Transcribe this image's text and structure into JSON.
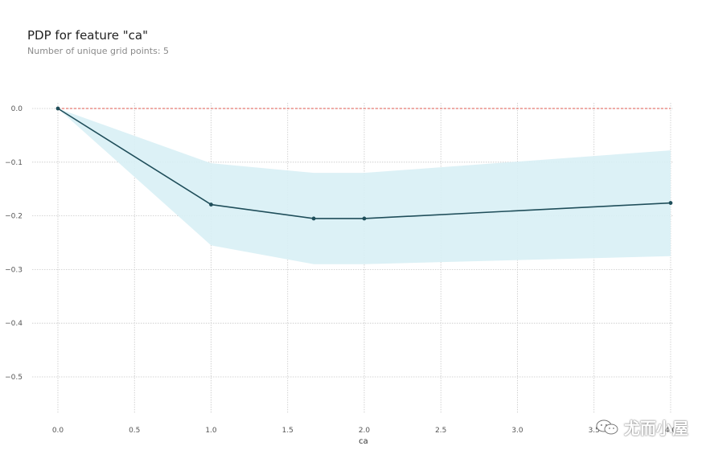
{
  "title": "PDP for feature \"ca\"",
  "subtitle": "Number of unique grid points: 5",
  "watermark": "尤而小屋",
  "colors": {
    "line": "#1f4e5a",
    "band": "#d8f0f5",
    "baseline": "#e05a4f",
    "grid": "#c8c8c8"
  },
  "chart_data": {
    "type": "line",
    "title": "PDP for feature \"ca\"",
    "subtitle": "Number of unique grid points: 5",
    "xlabel": "ca",
    "ylabel": "",
    "xlim": [
      -0.15,
      4.05
    ],
    "ylim": [
      -0.58,
      0.02
    ],
    "xticks": [
      0.0,
      0.5,
      1.0,
      1.5,
      2.0,
      2.5,
      3.0,
      3.5,
      4.0
    ],
    "xtick_labels": [
      "0.0",
      "0.5",
      "1.0",
      "1.5",
      "2.0",
      "2.5",
      "3.0",
      "3.5",
      "4.0"
    ],
    "yticks": [
      0.0,
      -0.1,
      -0.2,
      -0.3,
      -0.4,
      -0.5
    ],
    "ytick_labels": [
      "0.0",
      "−0.1",
      "−0.2",
      "−0.3",
      "−0.4",
      "−0.5"
    ],
    "grid": true,
    "baseline": 0.0,
    "series": [
      {
        "x": [
          0.0,
          1.0,
          1.67,
          2.0,
          4.0
        ],
        "y": [
          0.0,
          -0.179,
          -0.205,
          -0.205,
          -0.176
        ],
        "upper": [
          0.0,
          -0.102,
          -0.12,
          -0.12,
          -0.078
        ],
        "lower": [
          0.0,
          -0.255,
          -0.29,
          -0.29,
          -0.275
        ]
      }
    ]
  }
}
